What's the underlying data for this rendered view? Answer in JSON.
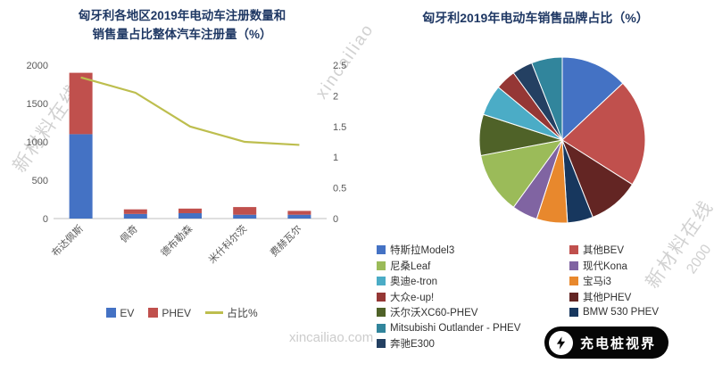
{
  "watermarks": {
    "left_diagonal": "新材料在线",
    "top_diagonal": "xincailiao",
    "right_diagonal": "新材料在线",
    "right_fragment": "2000",
    "bottom_center": "xincailiao.com"
  },
  "logo": {
    "text": "充电桩视界"
  },
  "left_chart": {
    "title_line1": "匈牙利各地区2019年电动车注册数量和",
    "title_line2": "销售量占比整体汽车注册量（%）"
  },
  "right_chart": {
    "title": "匈牙利2019年电动车销售品牌占比（%）"
  },
  "chart_data": [
    {
      "type": "bar",
      "subtype": "stacked-bar-with-line",
      "title": "匈牙利各地区2019年电动车注册数量和销售量占比整体汽车注册量（%）",
      "categories": [
        "布达佩斯",
        "佩奇",
        "德布勒森",
        "米什科尔茨",
        "费赫瓦尔"
      ],
      "series": [
        {
          "name": "EV",
          "type": "bar",
          "stack": true,
          "color": "#4472C4",
          "values": [
            1100,
            60,
            70,
            50,
            50
          ]
        },
        {
          "name": "PHEV",
          "type": "bar",
          "stack": true,
          "color": "#C0504D",
          "values": [
            800,
            60,
            60,
            100,
            50
          ]
        },
        {
          "name": "占比%",
          "type": "line",
          "axis": "right",
          "color": "#BDBE4E",
          "values": [
            2.3,
            2.05,
            1.5,
            1.25,
            1.2
          ]
        }
      ],
      "y_left": {
        "min": 0,
        "max": 2000,
        "ticks": [
          0,
          500,
          1000,
          1500,
          2000
        ]
      },
      "y_right": {
        "min": 0,
        "max": 2.5,
        "ticks": [
          0,
          0.5,
          1,
          1.5,
          2,
          2.5
        ]
      },
      "grid": false,
      "legend_position": "bottom"
    },
    {
      "type": "pie",
      "title": "匈牙利2019年电动车销售品牌占比（%）",
      "slices": [
        {
          "label": "特斯拉Model3",
          "color": "#4472C4",
          "value": 13
        },
        {
          "label": "其他BEV",
          "color": "#C0504D",
          "value": 21
        },
        {
          "label": "其他PHEV",
          "color": "#632523",
          "value": 10
        },
        {
          "label": "BMW 530 PHEV",
          "color": "#17375E",
          "value": 5
        },
        {
          "label": "宝马i3",
          "color": "#E8882D",
          "value": 6
        },
        {
          "label": "现代Kona",
          "color": "#8064A2",
          "value": 5
        },
        {
          "label": "尼桑Leaf",
          "color": "#9BBB59",
          "value": 12
        },
        {
          "label": "沃尔沃XC60-PHEV",
          "color": "#4F6228",
          "value": 8
        },
        {
          "label": "奥迪e-tron",
          "color": "#4BACC6",
          "value": 6
        },
        {
          "label": "大众e-up!",
          "color": "#953735",
          "value": 4
        },
        {
          "label": "奔驰E300",
          "color": "#244062",
          "value": 4
        },
        {
          "label": "Mitsubishi Outlander - PHEV",
          "color": "#31859C",
          "value": 6
        }
      ],
      "legend_columns": {
        "left": [
          {
            "label": "特斯拉Model3",
            "color": "#4472C4"
          },
          {
            "label": "尼桑Leaf",
            "color": "#9BBB59"
          },
          {
            "label": "奥迪e-tron",
            "color": "#4BACC6"
          },
          {
            "label": "大众e-up!",
            "color": "#953735"
          },
          {
            "label": "沃尔沃XC60-PHEV",
            "color": "#4F6228"
          },
          {
            "label": "Mitsubishi Outlander - PHEV",
            "color": "#31859C"
          },
          {
            "label": "奔驰E300",
            "color": "#244062"
          }
        ],
        "right": [
          {
            "label": "其他BEV",
            "color": "#C0504D"
          },
          {
            "label": "现代Kona",
            "color": "#8064A2"
          },
          {
            "label": "宝马i3",
            "color": "#E8882D"
          },
          {
            "label": "其他PHEV",
            "color": "#632523"
          },
          {
            "label": "BMW 530 PHEV",
            "color": "#17375E"
          }
        ]
      },
      "legend_position": "bottom"
    }
  ]
}
